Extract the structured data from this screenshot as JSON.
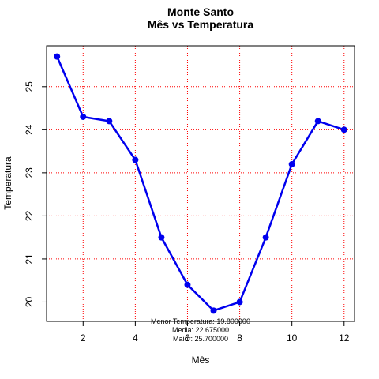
{
  "chart_data": {
    "type": "line",
    "title": "Monte Santo",
    "subtitle": "Mês vs Temperatura",
    "xlabel": "Mês",
    "ylabel": "Temperatura",
    "x": [
      1,
      2,
      3,
      4,
      5,
      6,
      7,
      8,
      9,
      10,
      11,
      12
    ],
    "series": [
      {
        "values": [
          25.7,
          24.3,
          24.2,
          23.3,
          21.5,
          20.4,
          19.8,
          20.0,
          21.5,
          23.2,
          24.2,
          24.0
        ],
        "color": "#0000ee"
      }
    ],
    "xlim": [
      0.6,
      12.4
    ],
    "ylim": [
      19.55,
      25.95
    ],
    "xticks": [
      2,
      4,
      6,
      8,
      10,
      12
    ],
    "yticks": [
      20,
      21,
      22,
      23,
      24,
      25
    ],
    "grid": true,
    "grid_color": "#ff0000",
    "annotations": [
      "Menor Temperatura: 19.800000",
      "Media: 22.675000",
      "Maior: 25.700000"
    ]
  }
}
